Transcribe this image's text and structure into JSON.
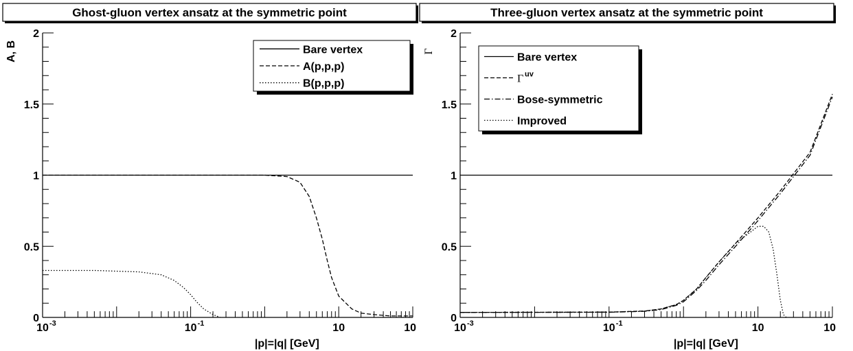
{
  "chart_data": [
    {
      "type": "line",
      "title": "Ghost-gluon vertex ansatz at the symmetric point",
      "xlabel": "|p|=|q| [GeV]",
      "ylabel": "A, B",
      "xscale": "log",
      "xlim": [
        0.001,
        100
      ],
      "ylim": [
        0,
        2
      ],
      "x_tick_labels": [
        "10",
        "10",
        "10",
        "10"
      ],
      "x_tick_exponents": [
        "-3",
        "-1",
        "",
        ""
      ],
      "y_tick_labels": [
        "0",
        "0.5",
        "1",
        "1.5",
        "2"
      ],
      "y_ticks": [
        0,
        0.5,
        1,
        1.5,
        2
      ],
      "grid": false,
      "legend": "top-right",
      "series": [
        {
          "name": "Bare vertex",
          "style": "solid",
          "x": [
            0.001,
            100
          ],
          "y": [
            1,
            1
          ]
        },
        {
          "name": "A(p,p,p)",
          "style": "dashed",
          "x": [
            0.001,
            0.1,
            1,
            2,
            3,
            4,
            5,
            6,
            7,
            8,
            10,
            15,
            20,
            30,
            50,
            100
          ],
          "y": [
            1,
            1,
            1,
            0.99,
            0.95,
            0.85,
            0.7,
            0.55,
            0.4,
            0.28,
            0.15,
            0.06,
            0.03,
            0.02,
            0.01,
            0.01
          ]
        },
        {
          "name": "B(p,p,p)",
          "style": "dotted",
          "x": [
            0.001,
            0.005,
            0.02,
            0.04,
            0.06,
            0.08,
            0.1,
            0.12,
            0.15,
            0.2,
            0.25
          ],
          "y": [
            0.33,
            0.33,
            0.32,
            0.3,
            0.26,
            0.21,
            0.16,
            0.11,
            0.06,
            0.02,
            0
          ]
        }
      ]
    },
    {
      "type": "line",
      "title": "Three-gluon vertex ansatz at the symmetric point",
      "xlabel": "|p|=|q| [GeV]",
      "ylabel": "Γ",
      "xscale": "log",
      "xlim": [
        0.001,
        100
      ],
      "ylim": [
        0,
        2
      ],
      "x_tick_labels": [
        "10",
        "10",
        "10",
        "10"
      ],
      "x_tick_exponents": [
        "-3",
        "-1",
        "",
        ""
      ],
      "y_tick_labels": [
        "0",
        "0.5",
        "1",
        "1.5",
        "2"
      ],
      "y_ticks": [
        0,
        0.5,
        1,
        1.5,
        2
      ],
      "grid": false,
      "legend": "top-left",
      "series": [
        {
          "name": "Bare vertex",
          "style": "solid",
          "x": [
            0.001,
            100
          ],
          "y": [
            1,
            1
          ]
        },
        {
          "name": "Γ",
          "name_sup": "uv",
          "style": "dashed",
          "x": [
            0.001,
            0.1,
            0.3,
            0.5,
            0.8,
            1,
            1.5,
            2,
            3,
            5,
            10,
            20,
            30,
            50,
            100
          ],
          "y": [
            0.035,
            0.037,
            0.045,
            0.06,
            0.09,
            0.12,
            0.2,
            0.28,
            0.39,
            0.52,
            0.7,
            0.89,
            1.01,
            1.16,
            1.57
          ]
        },
        {
          "name": "Bose-symmetric",
          "style": "dashdot",
          "x": [
            0.001,
            0.1,
            0.3,
            0.5,
            0.8,
            1,
            1.5,
            2,
            3,
            5,
            10,
            20,
            30,
            50,
            100
          ],
          "y": [
            0.035,
            0.036,
            0.043,
            0.055,
            0.085,
            0.11,
            0.19,
            0.26,
            0.37,
            0.5,
            0.68,
            0.87,
            0.99,
            1.14,
            1.55
          ]
        },
        {
          "name": "Improved",
          "style": "dotted",
          "x": [
            0.001,
            0.1,
            0.3,
            0.5,
            0.8,
            1,
            1.5,
            2,
            3,
            5,
            10,
            12,
            14,
            16,
            18,
            20,
            22,
            24
          ],
          "y": [
            0.035,
            0.037,
            0.045,
            0.06,
            0.09,
            0.12,
            0.2,
            0.28,
            0.39,
            0.52,
            0.64,
            0.64,
            0.6,
            0.48,
            0.3,
            0.12,
            0.02,
            0
          ]
        }
      ]
    }
  ]
}
